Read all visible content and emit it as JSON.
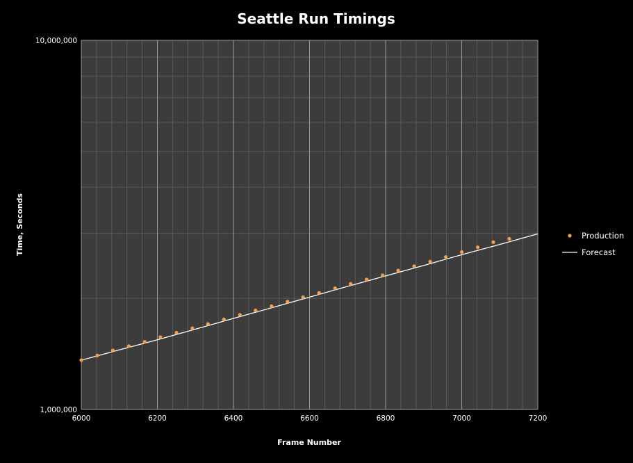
{
  "chart_data": {
    "type": "scatter",
    "title": "Seattle Run Timings",
    "xlabel": "Frame Number",
    "ylabel": "Time, Seconds",
    "x_scale": "linear",
    "y_scale": "log",
    "xlim": [
      6000,
      7200
    ],
    "ylim": [
      1000000,
      10000000
    ],
    "x_ticks": [
      6000,
      6200,
      6400,
      6600,
      6800,
      7000,
      7200
    ],
    "x_tick_labels": [
      "6000",
      "6200",
      "6400",
      "6600",
      "6800",
      "7000",
      "7200"
    ],
    "y_ticks": [
      1000000,
      10000000
    ],
    "y_tick_labels": [
      "1,000,000",
      "10,000,000"
    ],
    "grid": true,
    "legend_position": "right",
    "series": [
      {
        "name": "Production",
        "kind": "points",
        "color": "#f0a050",
        "x": [
          6000,
          6042,
          6083,
          6125,
          6167,
          6208,
          6250,
          6292,
          6333,
          6375,
          6417,
          6458,
          6500,
          6542,
          6583,
          6625,
          6667,
          6708,
          6750,
          6792,
          6833,
          6875,
          6917,
          6958,
          7000,
          7042,
          7083,
          7125
        ],
        "y": [
          1360000,
          1400000,
          1445000,
          1485000,
          1525000,
          1570000,
          1615000,
          1660000,
          1705000,
          1755000,
          1805000,
          1855000,
          1905000,
          1960000,
          2015000,
          2070000,
          2130000,
          2190000,
          2250000,
          2310000,
          2380000,
          2445000,
          2515000,
          2590000,
          2670000,
          2750000,
          2840000,
          2900000
        ]
      },
      {
        "name": "Forecast",
        "kind": "line",
        "color": "#ffffff",
        "x": [
          6000,
          6100,
          6200,
          6300,
          6400,
          6500,
          6600,
          6700,
          6800,
          6900,
          7000,
          7100,
          7200
        ],
        "y": [
          1360000,
          1450000,
          1545000,
          1650000,
          1765000,
          1885000,
          2015000,
          2155000,
          2300000,
          2455000,
          2625000,
          2800000,
          2990000
        ]
      }
    ],
    "colors": {
      "background": "#000000",
      "plot_area": "#3c3c3c",
      "major_grid": "#9a9a9a",
      "minor_grid": "#5a5a5a"
    }
  }
}
